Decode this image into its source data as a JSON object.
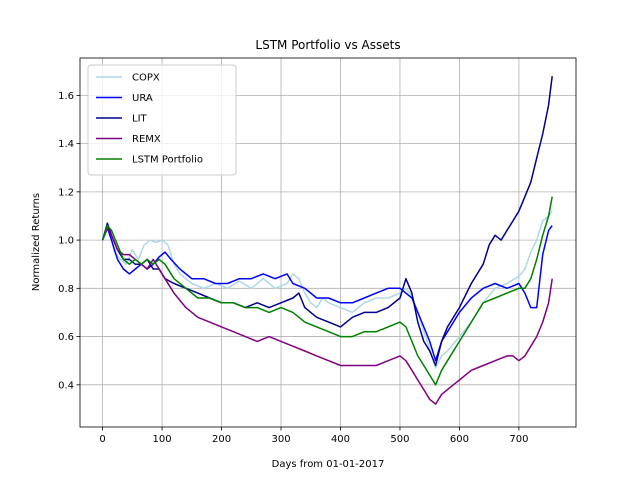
{
  "chart_data": {
    "type": "line",
    "title": "LSTM Portfolio vs Assets",
    "xlabel": "Days from 01-01-2017",
    "ylabel": "Normalized Returns",
    "xlim": [
      -38,
      796
    ],
    "ylim": [
      0.225,
      1.755
    ],
    "xticks": [
      0,
      100,
      200,
      300,
      400,
      500,
      600,
      700
    ],
    "yticks": [
      0.4,
      0.6,
      0.8,
      1.0,
      1.2,
      1.4,
      1.6
    ],
    "grid": true,
    "legend_position": "top-left",
    "series": [
      {
        "name": "COPX",
        "color": "#add8e6",
        "points": [
          [
            0,
            1.0
          ],
          [
            10,
            1.06
          ],
          [
            20,
            0.95
          ],
          [
            30,
            0.92
          ],
          [
            40,
            0.9
          ],
          [
            50,
            0.96
          ],
          [
            60,
            0.92
          ],
          [
            70,
            0.98
          ],
          [
            80,
            1.0
          ],
          [
            90,
            0.99
          ],
          [
            100,
            1.0
          ],
          [
            110,
            0.98
          ],
          [
            120,
            0.9
          ],
          [
            130,
            0.86
          ],
          [
            150,
            0.82
          ],
          [
            170,
            0.8
          ],
          [
            190,
            0.82
          ],
          [
            210,
            0.8
          ],
          [
            230,
            0.83
          ],
          [
            250,
            0.8
          ],
          [
            270,
            0.84
          ],
          [
            290,
            0.8
          ],
          [
            310,
            0.82
          ],
          [
            320,
            0.86
          ],
          [
            330,
            0.84
          ],
          [
            340,
            0.78
          ],
          [
            350,
            0.74
          ],
          [
            360,
            0.72
          ],
          [
            370,
            0.76
          ],
          [
            380,
            0.74
          ],
          [
            400,
            0.72
          ],
          [
            420,
            0.7
          ],
          [
            440,
            0.74
          ],
          [
            460,
            0.76
          ],
          [
            480,
            0.76
          ],
          [
            500,
            0.78
          ],
          [
            510,
            0.8
          ],
          [
            520,
            0.77
          ],
          [
            530,
            0.7
          ],
          [
            540,
            0.62
          ],
          [
            550,
            0.55
          ],
          [
            560,
            0.47
          ],
          [
            570,
            0.52
          ],
          [
            580,
            0.54
          ],
          [
            600,
            0.6
          ],
          [
            620,
            0.66
          ],
          [
            640,
            0.74
          ],
          [
            660,
            0.8
          ],
          [
            680,
            0.82
          ],
          [
            700,
            0.85
          ],
          [
            710,
            0.88
          ],
          [
            720,
            0.95
          ],
          [
            730,
            1.0
          ],
          [
            740,
            1.08
          ],
          [
            750,
            1.1
          ],
          [
            756,
            1.12
          ]
        ]
      },
      {
        "name": "URA",
        "color": "#0000ff",
        "points": [
          [
            0,
            1.0
          ],
          [
            8,
            1.05
          ],
          [
            15,
            1.0
          ],
          [
            25,
            0.92
          ],
          [
            35,
            0.88
          ],
          [
            45,
            0.86
          ],
          [
            55,
            0.88
          ],
          [
            65,
            0.9
          ],
          [
            75,
            0.88
          ],
          [
            85,
            0.9
          ],
          [
            95,
            0.93
          ],
          [
            105,
            0.95
          ],
          [
            115,
            0.92
          ],
          [
            130,
            0.88
          ],
          [
            150,
            0.84
          ],
          [
            170,
            0.84
          ],
          [
            190,
            0.82
          ],
          [
            210,
            0.82
          ],
          [
            230,
            0.84
          ],
          [
            250,
            0.84
          ],
          [
            270,
            0.86
          ],
          [
            290,
            0.84
          ],
          [
            310,
            0.86
          ],
          [
            320,
            0.82
          ],
          [
            340,
            0.8
          ],
          [
            360,
            0.76
          ],
          [
            380,
            0.76
          ],
          [
            400,
            0.74
          ],
          [
            420,
            0.74
          ],
          [
            440,
            0.76
          ],
          [
            460,
            0.78
          ],
          [
            480,
            0.8
          ],
          [
            500,
            0.8
          ],
          [
            520,
            0.76
          ],
          [
            530,
            0.7
          ],
          [
            540,
            0.64
          ],
          [
            550,
            0.58
          ],
          [
            560,
            0.5
          ],
          [
            570,
            0.58
          ],
          [
            580,
            0.62
          ],
          [
            600,
            0.7
          ],
          [
            620,
            0.76
          ],
          [
            640,
            0.8
          ],
          [
            660,
            0.82
          ],
          [
            680,
            0.8
          ],
          [
            700,
            0.82
          ],
          [
            710,
            0.78
          ],
          [
            720,
            0.72
          ],
          [
            730,
            0.72
          ],
          [
            740,
            0.94
          ],
          [
            750,
            1.04
          ],
          [
            756,
            1.06
          ]
        ]
      },
      {
        "name": "LIT",
        "color": "#00008b",
        "points": [
          [
            0,
            1.0
          ],
          [
            8,
            1.07
          ],
          [
            15,
            1.02
          ],
          [
            25,
            0.96
          ],
          [
            35,
            0.92
          ],
          [
            45,
            0.92
          ],
          [
            55,
            0.9
          ],
          [
            65,
            0.9
          ],
          [
            75,
            0.92
          ],
          [
            85,
            0.88
          ],
          [
            95,
            0.88
          ],
          [
            105,
            0.84
          ],
          [
            120,
            0.82
          ],
          [
            140,
            0.8
          ],
          [
            160,
            0.78
          ],
          [
            180,
            0.76
          ],
          [
            200,
            0.74
          ],
          [
            220,
            0.74
          ],
          [
            240,
            0.72
          ],
          [
            260,
            0.74
          ],
          [
            280,
            0.72
          ],
          [
            300,
            0.74
          ],
          [
            320,
            0.76
          ],
          [
            330,
            0.78
          ],
          [
            340,
            0.72
          ],
          [
            360,
            0.68
          ],
          [
            380,
            0.66
          ],
          [
            400,
            0.64
          ],
          [
            420,
            0.68
          ],
          [
            440,
            0.7
          ],
          [
            460,
            0.7
          ],
          [
            480,
            0.72
          ],
          [
            500,
            0.76
          ],
          [
            510,
            0.84
          ],
          [
            520,
            0.78
          ],
          [
            530,
            0.66
          ],
          [
            540,
            0.58
          ],
          [
            550,
            0.54
          ],
          [
            560,
            0.48
          ],
          [
            570,
            0.58
          ],
          [
            580,
            0.64
          ],
          [
            600,
            0.72
          ],
          [
            620,
            0.82
          ],
          [
            640,
            0.9
          ],
          [
            650,
            0.98
          ],
          [
            660,
            1.02
          ],
          [
            670,
            1.0
          ],
          [
            680,
            1.04
          ],
          [
            690,
            1.08
          ],
          [
            700,
            1.12
          ],
          [
            710,
            1.18
          ],
          [
            720,
            1.24
          ],
          [
            730,
            1.34
          ],
          [
            740,
            1.44
          ],
          [
            750,
            1.56
          ],
          [
            756,
            1.68
          ]
        ]
      },
      {
        "name": "REMX",
        "color": "#800080",
        "points": [
          [
            0,
            1.0
          ],
          [
            8,
            1.05
          ],
          [
            15,
            1.02
          ],
          [
            25,
            0.96
          ],
          [
            35,
            0.94
          ],
          [
            45,
            0.94
          ],
          [
            55,
            0.92
          ],
          [
            65,
            0.9
          ],
          [
            75,
            0.88
          ],
          [
            85,
            0.92
          ],
          [
            95,
            0.88
          ],
          [
            105,
            0.84
          ],
          [
            120,
            0.78
          ],
          [
            140,
            0.72
          ],
          [
            160,
            0.68
          ],
          [
            180,
            0.66
          ],
          [
            200,
            0.64
          ],
          [
            220,
            0.62
          ],
          [
            240,
            0.6
          ],
          [
            260,
            0.58
          ],
          [
            280,
            0.6
          ],
          [
            300,
            0.58
          ],
          [
            320,
            0.56
          ],
          [
            340,
            0.54
          ],
          [
            360,
            0.52
          ],
          [
            380,
            0.5
          ],
          [
            400,
            0.48
          ],
          [
            420,
            0.48
          ],
          [
            440,
            0.48
          ],
          [
            460,
            0.48
          ],
          [
            480,
            0.5
          ],
          [
            500,
            0.52
          ],
          [
            510,
            0.5
          ],
          [
            520,
            0.46
          ],
          [
            530,
            0.42
          ],
          [
            540,
            0.38
          ],
          [
            550,
            0.34
          ],
          [
            560,
            0.32
          ],
          [
            570,
            0.36
          ],
          [
            580,
            0.38
          ],
          [
            600,
            0.42
          ],
          [
            620,
            0.46
          ],
          [
            640,
            0.48
          ],
          [
            660,
            0.5
          ],
          [
            680,
            0.52
          ],
          [
            690,
            0.52
          ],
          [
            700,
            0.5
          ],
          [
            710,
            0.52
          ],
          [
            720,
            0.56
          ],
          [
            730,
            0.6
          ],
          [
            740,
            0.66
          ],
          [
            750,
            0.74
          ],
          [
            756,
            0.84
          ]
        ]
      },
      {
        "name": "LSTM Portfolio",
        "color": "#008000",
        "points": [
          [
            0,
            1.0
          ],
          [
            8,
            1.06
          ],
          [
            15,
            1.04
          ],
          [
            25,
            0.98
          ],
          [
            35,
            0.92
          ],
          [
            45,
            0.9
          ],
          [
            55,
            0.92
          ],
          [
            65,
            0.9
          ],
          [
            75,
            0.92
          ],
          [
            85,
            0.9
          ],
          [
            95,
            0.92
          ],
          [
            105,
            0.9
          ],
          [
            120,
            0.84
          ],
          [
            140,
            0.8
          ],
          [
            160,
            0.76
          ],
          [
            180,
            0.76
          ],
          [
            200,
            0.74
          ],
          [
            220,
            0.74
          ],
          [
            240,
            0.72
          ],
          [
            260,
            0.72
          ],
          [
            280,
            0.7
          ],
          [
            300,
            0.72
          ],
          [
            320,
            0.7
          ],
          [
            340,
            0.66
          ],
          [
            360,
            0.64
          ],
          [
            380,
            0.62
          ],
          [
            400,
            0.6
          ],
          [
            420,
            0.6
          ],
          [
            440,
            0.62
          ],
          [
            460,
            0.62
          ],
          [
            480,
            0.64
          ],
          [
            500,
            0.66
          ],
          [
            510,
            0.64
          ],
          [
            520,
            0.58
          ],
          [
            530,
            0.52
          ],
          [
            540,
            0.48
          ],
          [
            550,
            0.44
          ],
          [
            560,
            0.4
          ],
          [
            570,
            0.46
          ],
          [
            580,
            0.5
          ],
          [
            600,
            0.58
          ],
          [
            620,
            0.66
          ],
          [
            640,
            0.74
          ],
          [
            660,
            0.76
          ],
          [
            680,
            0.78
          ],
          [
            700,
            0.8
          ],
          [
            710,
            0.8
          ],
          [
            720,
            0.84
          ],
          [
            730,
            0.92
          ],
          [
            740,
            1.02
          ],
          [
            750,
            1.1
          ],
          [
            756,
            1.18
          ]
        ]
      }
    ]
  }
}
